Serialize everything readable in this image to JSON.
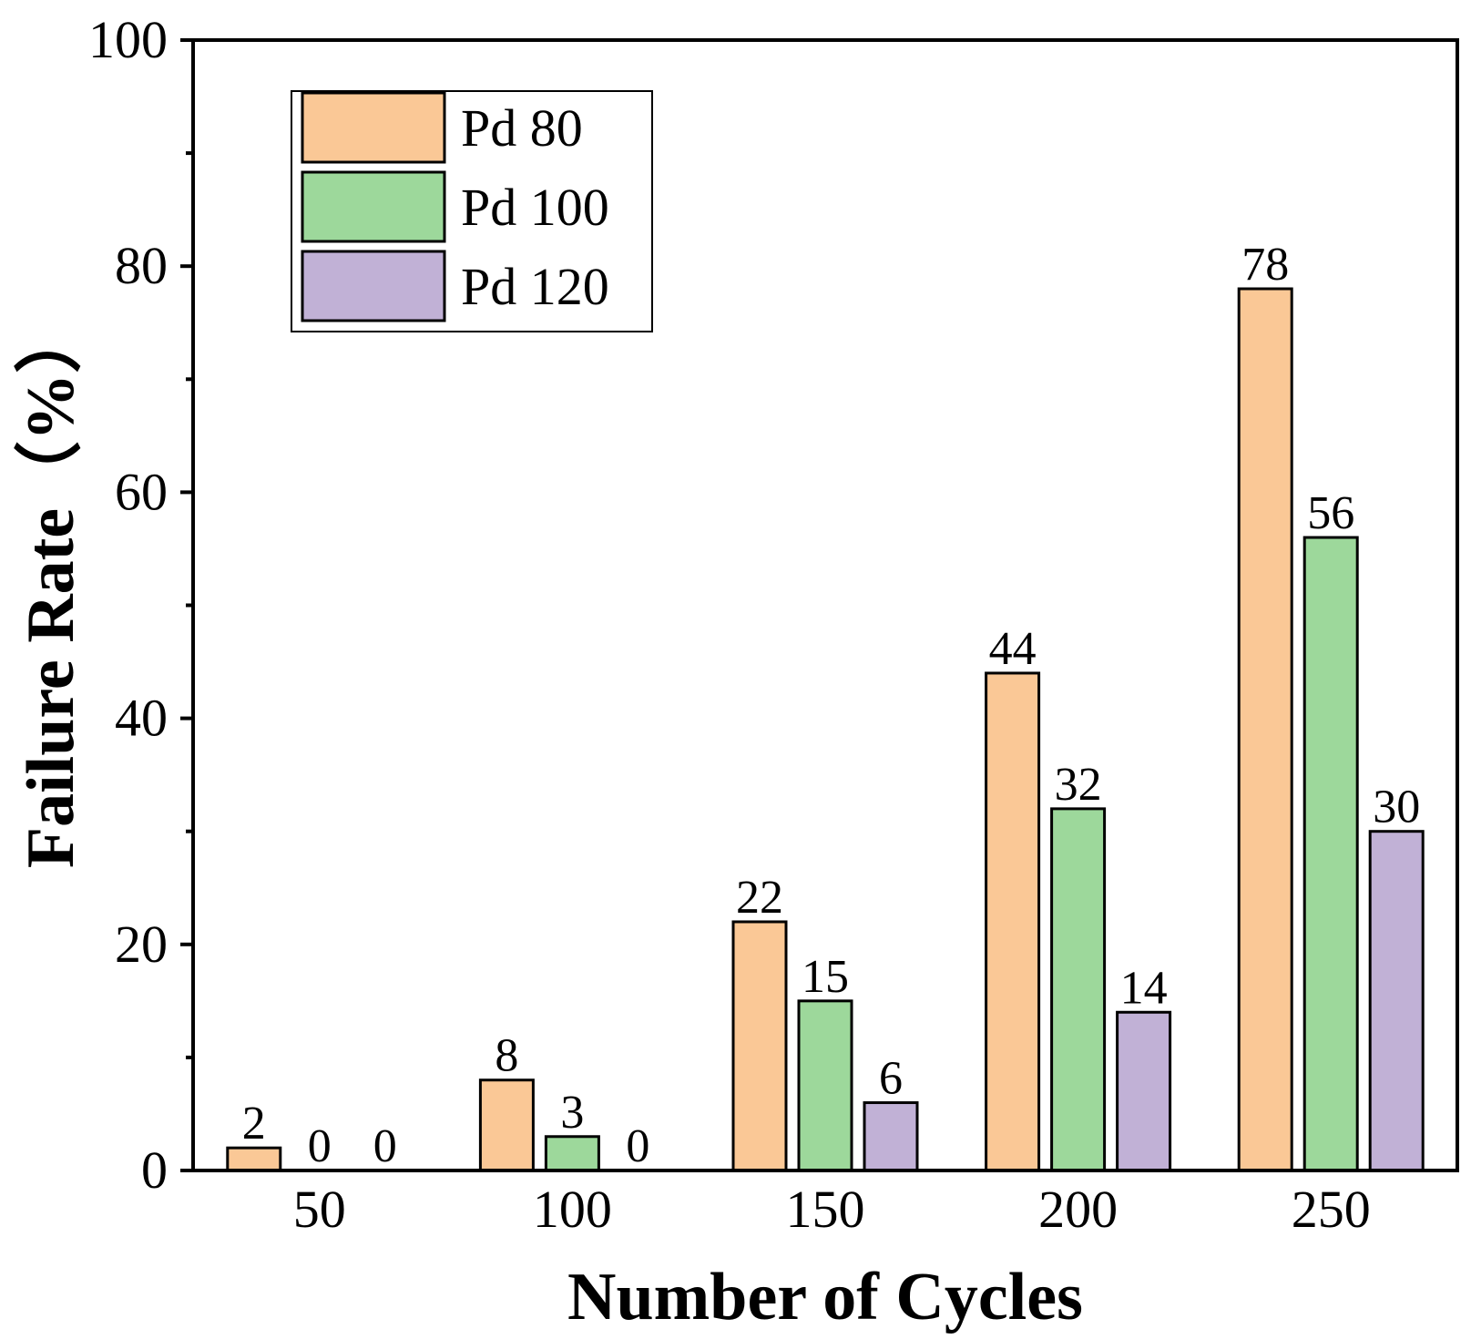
{
  "chart_data": {
    "type": "bar",
    "title": "",
    "xlabel": "Number of Cycles",
    "ylabel": "Failure Rate（%）",
    "categories": [
      "50",
      "100",
      "150",
      "200",
      "250"
    ],
    "series": [
      {
        "name": "Pd 80",
        "color": "#FAC896",
        "values": [
          2,
          8,
          22,
          44,
          78
        ]
      },
      {
        "name": "Pd 100",
        "color": "#9DD89B",
        "values": [
          0,
          3,
          15,
          32,
          56
        ]
      },
      {
        "name": "Pd 120",
        "color": "#C1B1D6",
        "values": [
          0,
          0,
          6,
          14,
          30
        ]
      }
    ],
    "ylim": [
      0,
      100
    ],
    "yticks": [
      0,
      20,
      40,
      60,
      80,
      100
    ],
    "yticks_minor": [
      10,
      30,
      50,
      70,
      90
    ],
    "grid": false,
    "legend_position": "top-left",
    "bar_labels": true
  }
}
